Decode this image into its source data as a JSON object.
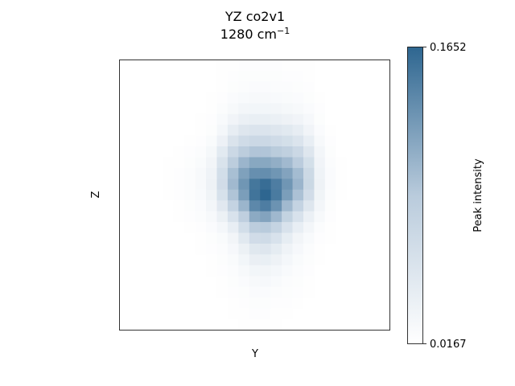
{
  "chart_data": {
    "type": "heatmap",
    "title_line1": "YZ co2v1",
    "title_line2_value": "1280 cm",
    "title_line2_sup": "−1",
    "xlabel": "Y",
    "ylabel": "Z",
    "colorbar": {
      "label": "Peak intensity",
      "min": 0.0167,
      "max": 0.1652,
      "min_label": "0.0167",
      "max_label": "0.1652",
      "color_low": "#ffffff",
      "color_high": "#2e6690"
    },
    "grid": false,
    "rows": 25,
    "cols": 25,
    "values": [
      [
        0.017,
        0.017,
        0.017,
        0.017,
        0.017,
        0.017,
        0.017,
        0.017,
        0.017,
        0.018,
        0.018,
        0.019,
        0.019,
        0.019,
        0.019,
        0.018,
        0.018,
        0.018,
        0.017,
        0.017,
        0.017,
        0.017,
        0.017,
        0.017,
        0.017
      ],
      [
        0.017,
        0.017,
        0.017,
        0.017,
        0.017,
        0.017,
        0.017,
        0.017,
        0.017,
        0.018,
        0.019,
        0.02,
        0.02,
        0.02,
        0.02,
        0.019,
        0.019,
        0.018,
        0.017,
        0.017,
        0.017,
        0.017,
        0.017,
        0.017,
        0.017
      ],
      [
        0.017,
        0.017,
        0.017,
        0.017,
        0.017,
        0.017,
        0.017,
        0.017,
        0.017,
        0.018,
        0.02,
        0.021,
        0.022,
        0.022,
        0.021,
        0.021,
        0.02,
        0.019,
        0.017,
        0.017,
        0.017,
        0.017,
        0.017,
        0.017,
        0.017
      ],
      [
        0.017,
        0.017,
        0.017,
        0.017,
        0.017,
        0.017,
        0.017,
        0.017,
        0.018,
        0.019,
        0.022,
        0.024,
        0.025,
        0.025,
        0.024,
        0.023,
        0.022,
        0.02,
        0.018,
        0.017,
        0.017,
        0.017,
        0.017,
        0.017,
        0.017
      ],
      [
        0.017,
        0.017,
        0.017,
        0.017,
        0.017,
        0.017,
        0.017,
        0.017,
        0.018,
        0.021,
        0.025,
        0.029,
        0.03,
        0.03,
        0.029,
        0.027,
        0.025,
        0.022,
        0.019,
        0.017,
        0.017,
        0.017,
        0.017,
        0.017,
        0.017
      ],
      [
        0.017,
        0.017,
        0.017,
        0.017,
        0.017,
        0.017,
        0.017,
        0.018,
        0.019,
        0.024,
        0.032,
        0.038,
        0.04,
        0.04,
        0.038,
        0.035,
        0.032,
        0.026,
        0.02,
        0.017,
        0.017,
        0.017,
        0.017,
        0.017,
        0.017
      ],
      [
        0.017,
        0.017,
        0.017,
        0.017,
        0.017,
        0.017,
        0.017,
        0.018,
        0.02,
        0.028,
        0.042,
        0.052,
        0.055,
        0.055,
        0.052,
        0.048,
        0.042,
        0.032,
        0.022,
        0.018,
        0.017,
        0.017,
        0.017,
        0.017,
        0.017
      ],
      [
        0.017,
        0.017,
        0.017,
        0.017,
        0.017,
        0.017,
        0.018,
        0.019,
        0.023,
        0.036,
        0.056,
        0.068,
        0.072,
        0.072,
        0.068,
        0.063,
        0.055,
        0.041,
        0.025,
        0.019,
        0.017,
        0.017,
        0.017,
        0.017,
        0.017
      ],
      [
        0.017,
        0.017,
        0.017,
        0.017,
        0.017,
        0.018,
        0.019,
        0.021,
        0.027,
        0.047,
        0.072,
        0.088,
        0.095,
        0.095,
        0.09,
        0.084,
        0.072,
        0.052,
        0.029,
        0.02,
        0.017,
        0.017,
        0.017,
        0.017,
        0.017
      ],
      [
        0.017,
        0.017,
        0.017,
        0.017,
        0.018,
        0.018,
        0.02,
        0.023,
        0.031,
        0.057,
        0.088,
        0.107,
        0.117,
        0.117,
        0.112,
        0.104,
        0.089,
        0.063,
        0.032,
        0.021,
        0.018,
        0.017,
        0.017,
        0.017,
        0.017
      ],
      [
        0.017,
        0.017,
        0.017,
        0.017,
        0.018,
        0.019,
        0.021,
        0.025,
        0.034,
        0.064,
        0.1,
        0.122,
        0.135,
        0.136,
        0.13,
        0.12,
        0.102,
        0.071,
        0.034,
        0.022,
        0.018,
        0.017,
        0.017,
        0.017,
        0.017
      ],
      [
        0.017,
        0.017,
        0.017,
        0.017,
        0.018,
        0.019,
        0.021,
        0.025,
        0.035,
        0.066,
        0.104,
        0.13,
        0.153,
        0.16,
        0.148,
        0.13,
        0.107,
        0.073,
        0.035,
        0.022,
        0.018,
        0.017,
        0.017,
        0.017,
        0.017
      ],
      [
        0.017,
        0.017,
        0.017,
        0.017,
        0.018,
        0.019,
        0.021,
        0.024,
        0.033,
        0.06,
        0.096,
        0.124,
        0.155,
        0.165,
        0.15,
        0.124,
        0.098,
        0.066,
        0.033,
        0.021,
        0.018,
        0.017,
        0.017,
        0.017,
        0.017
      ],
      [
        0.017,
        0.017,
        0.017,
        0.017,
        0.017,
        0.018,
        0.02,
        0.022,
        0.029,
        0.049,
        0.079,
        0.107,
        0.14,
        0.148,
        0.132,
        0.104,
        0.079,
        0.052,
        0.029,
        0.02,
        0.017,
        0.017,
        0.017,
        0.017,
        0.017
      ],
      [
        0.017,
        0.017,
        0.017,
        0.017,
        0.017,
        0.018,
        0.019,
        0.021,
        0.025,
        0.037,
        0.058,
        0.085,
        0.115,
        0.12,
        0.105,
        0.08,
        0.058,
        0.038,
        0.025,
        0.019,
        0.017,
        0.017,
        0.017,
        0.017,
        0.017
      ],
      [
        0.017,
        0.017,
        0.017,
        0.017,
        0.017,
        0.017,
        0.018,
        0.019,
        0.022,
        0.028,
        0.041,
        0.064,
        0.088,
        0.091,
        0.078,
        0.058,
        0.041,
        0.029,
        0.021,
        0.018,
        0.017,
        0.017,
        0.017,
        0.017,
        0.017
      ],
      [
        0.017,
        0.017,
        0.017,
        0.017,
        0.017,
        0.017,
        0.017,
        0.018,
        0.02,
        0.023,
        0.031,
        0.048,
        0.066,
        0.068,
        0.058,
        0.043,
        0.031,
        0.024,
        0.019,
        0.018,
        0.017,
        0.017,
        0.017,
        0.017,
        0.017
      ],
      [
        0.017,
        0.017,
        0.017,
        0.017,
        0.017,
        0.017,
        0.017,
        0.018,
        0.019,
        0.021,
        0.026,
        0.037,
        0.05,
        0.052,
        0.044,
        0.034,
        0.026,
        0.021,
        0.018,
        0.017,
        0.017,
        0.017,
        0.017,
        0.017,
        0.017
      ],
      [
        0.017,
        0.017,
        0.017,
        0.017,
        0.017,
        0.017,
        0.017,
        0.017,
        0.018,
        0.02,
        0.023,
        0.03,
        0.039,
        0.04,
        0.035,
        0.028,
        0.023,
        0.02,
        0.018,
        0.017,
        0.017,
        0.017,
        0.017,
        0.017,
        0.017
      ],
      [
        0.017,
        0.017,
        0.017,
        0.017,
        0.017,
        0.017,
        0.017,
        0.017,
        0.018,
        0.019,
        0.021,
        0.025,
        0.03,
        0.031,
        0.028,
        0.024,
        0.021,
        0.019,
        0.017,
        0.017,
        0.017,
        0.017,
        0.017,
        0.017,
        0.017
      ],
      [
        0.017,
        0.017,
        0.017,
        0.017,
        0.017,
        0.017,
        0.017,
        0.017,
        0.017,
        0.018,
        0.02,
        0.022,
        0.025,
        0.026,
        0.024,
        0.021,
        0.02,
        0.018,
        0.017,
        0.017,
        0.017,
        0.017,
        0.017,
        0.017,
        0.017
      ],
      [
        0.017,
        0.017,
        0.017,
        0.017,
        0.017,
        0.017,
        0.017,
        0.017,
        0.017,
        0.018,
        0.019,
        0.02,
        0.022,
        0.022,
        0.021,
        0.02,
        0.019,
        0.018,
        0.017,
        0.017,
        0.017,
        0.017,
        0.017,
        0.017,
        0.017
      ],
      [
        0.017,
        0.017,
        0.017,
        0.017,
        0.017,
        0.017,
        0.017,
        0.017,
        0.017,
        0.017,
        0.018,
        0.019,
        0.02,
        0.02,
        0.019,
        0.019,
        0.018,
        0.017,
        0.017,
        0.017,
        0.017,
        0.017,
        0.017,
        0.017,
        0.017
      ],
      [
        0.017,
        0.017,
        0.017,
        0.017,
        0.017,
        0.017,
        0.017,
        0.017,
        0.017,
        0.017,
        0.018,
        0.018,
        0.019,
        0.019,
        0.018,
        0.018,
        0.017,
        0.017,
        0.017,
        0.017,
        0.017,
        0.017,
        0.017,
        0.017,
        0.017
      ],
      [
        0.017,
        0.017,
        0.017,
        0.017,
        0.017,
        0.017,
        0.017,
        0.017,
        0.017,
        0.017,
        0.017,
        0.018,
        0.018,
        0.018,
        0.018,
        0.017,
        0.017,
        0.017,
        0.017,
        0.017,
        0.017,
        0.017,
        0.017,
        0.017,
        0.017
      ]
    ]
  }
}
